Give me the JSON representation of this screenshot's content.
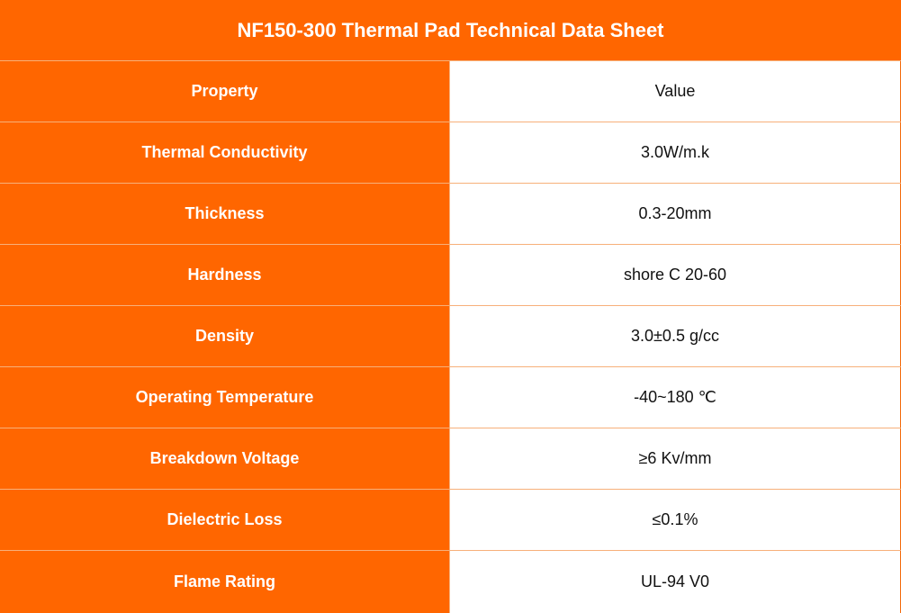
{
  "title": "NF150-300 Thermal Pad Technical Data Sheet",
  "colors": {
    "orange": "#ff6600",
    "divider": "#f7b07a",
    "value_bg": "#ffffff"
  },
  "table": {
    "rows": [
      {
        "property": "Property",
        "value": "Value"
      },
      {
        "property": "Thermal Conductivity",
        "value": "3.0W/m.k"
      },
      {
        "property": "Thickness",
        "value": "0.3-20mm"
      },
      {
        "property": "Hardness",
        "value": "shore C 20-60"
      },
      {
        "property": "Density",
        "value": "3.0±0.5 g/cc"
      },
      {
        "property": "Operating Temperature",
        "value": "-40~180 ℃"
      },
      {
        "property": "Breakdown Voltage",
        "value": "≥6 Kv/mm"
      },
      {
        "property": "Dielectric Loss",
        "value": "≤0.1%"
      },
      {
        "property": "Flame Rating",
        "value": "UL-94 V0"
      }
    ]
  }
}
